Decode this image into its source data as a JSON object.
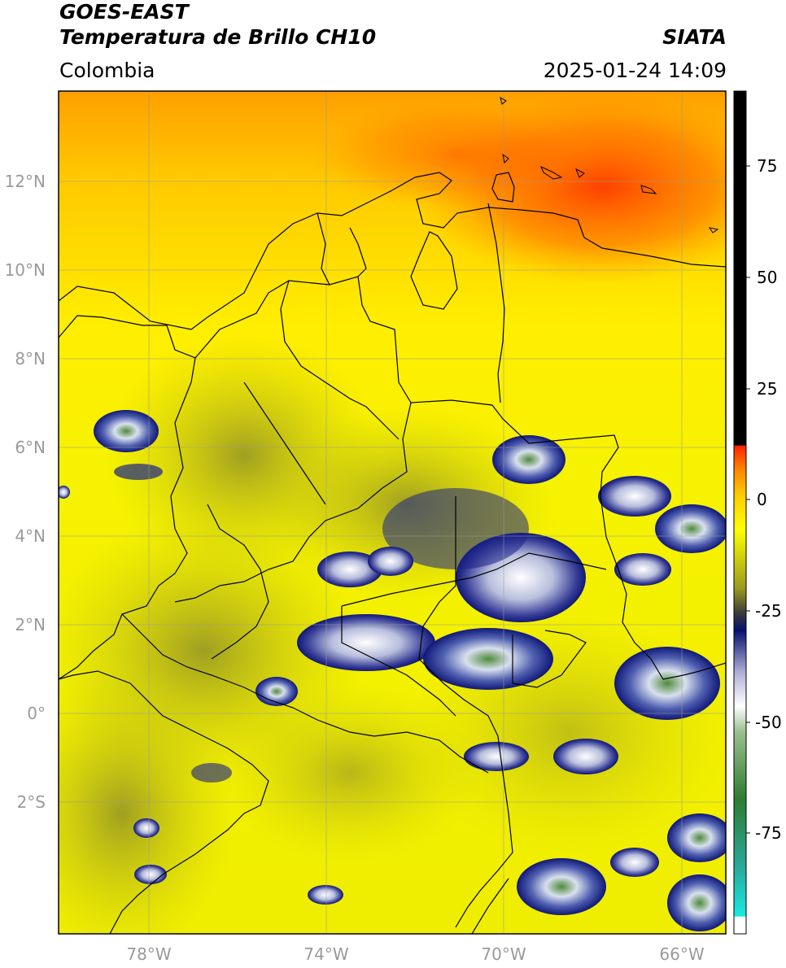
{
  "header": {
    "satellite": "GOES-EAST",
    "product": "Temperatura de Brillo CH10",
    "brand": "SIATA",
    "region": "Colombia",
    "datetime": "2025-01-24 14:09"
  },
  "map": {
    "lat_ticks": [
      "12°N",
      "10°N",
      "8°N",
      "6°N",
      "4°N",
      "2°N",
      "0°",
      "2°S"
    ],
    "lon_ticks": [
      "78°W",
      "74°W",
      "70°W",
      "66°W"
    ]
  },
  "colorbar": {
    "labels": [
      "75",
      "50",
      "25",
      "0",
      "-25",
      "-50",
      "-75"
    ],
    "colors": {
      "warm": "#000000",
      "red": "#ff2a00",
      "orange": "#ff9a00",
      "yellow": "#ffff00",
      "olive": "#9a9a20",
      "navy": "#0a1070",
      "white": "#ffffff",
      "green": "#2e7d32",
      "cyan": "#19e0d4"
    }
  }
}
